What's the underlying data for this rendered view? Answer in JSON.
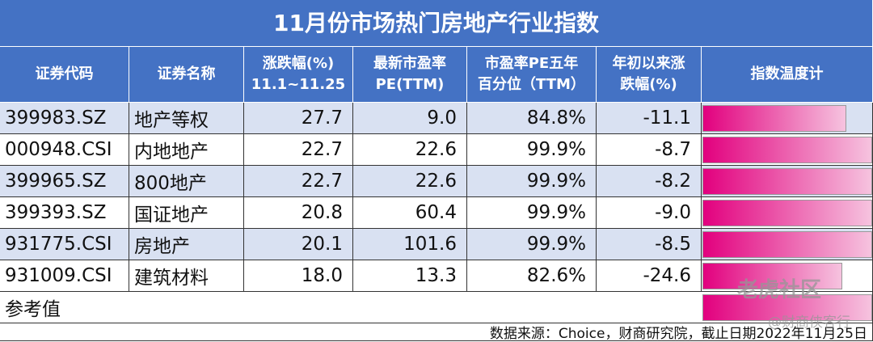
{
  "title": "11月份市场热门房地产行业指数",
  "header": [
    "证券代码",
    "证券名称",
    "涨跌幅(%)\n11.1~11.25",
    "最新市盈率\nPE(TTM)",
    "市盈率PE五年\n百分位（TTM）",
    "年初以来涨\n跌幅(%)",
    "指数温度计"
  ],
  "rows": [
    {
      "code": "399983.SZ",
      "name": "地产等权",
      "change": "27.7",
      "pe": "9.0",
      "pe_pct": {
        "value": 84.8,
        "label": "84.8%"
      },
      "ytd": "-11.1"
    },
    {
      "code": "000948.CSI",
      "name": "内地地产",
      "change": "22.7",
      "pe": "22.6",
      "pe_pct": {
        "value": 99.9,
        "label": "99.9%"
      },
      "ytd": "-8.7"
    },
    {
      "code": "399965.SZ",
      "name": "800地产",
      "change": "22.7",
      "pe": "22.6",
      "pe_pct": {
        "value": 99.9,
        "label": "99.9%"
      },
      "ytd": "-8.2"
    },
    {
      "code": "399393.SZ",
      "name": "国证地产",
      "change": "20.8",
      "pe": "60.4",
      "pe_pct": {
        "value": 99.9,
        "label": "99.9%"
      },
      "ytd": "-9.0"
    },
    {
      "code": "931775.CSI",
      "name": "房地产",
      "change": "20.1",
      "pe": "101.6",
      "pe_pct": {
        "value": 99.9,
        "label": "99.9%"
      },
      "ytd": "-8.5"
    },
    {
      "code": "931009.CSI",
      "name": "建筑材料",
      "change": "18.0",
      "pe": "13.3",
      "pe_pct": {
        "value": 82.6,
        "label": "82.6%"
      },
      "ytd": "-24.6"
    }
  ],
  "reference": "参考值",
  "source": "数据来源：Choice，财商研究院，截止日期2022年11月25日",
  "watermarks": [
    "老虎社区",
    "@财商侠客行"
  ],
  "gauge_max": 100
}
